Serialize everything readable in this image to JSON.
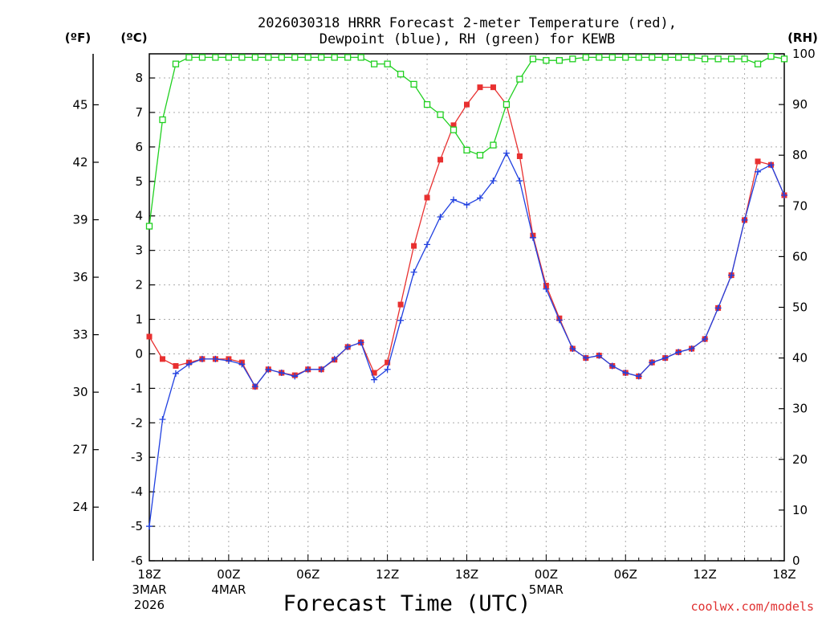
{
  "chart_data": {
    "type": "line",
    "title_line1": "2026030318 HRRR Forecast 2-meter Temperature (red),",
    "title_line2": "Dewpoint (blue), RH (green) for KEWB",
    "xlabel": "Forecast Time (UTC)",
    "credit": "coolwx.com/models",
    "units": {
      "f": "(ºF)",
      "c": "(ºC)",
      "rh": "(RH)"
    },
    "x_range_hours": [
      0,
      48
    ],
    "y_c_range": [
      -6,
      8.7
    ],
    "y_rh_range": [
      0,
      100
    ],
    "c_ticks": [
      "-6",
      "-5",
      "-4",
      "-3",
      "-2",
      "-1",
      "0",
      "1",
      "2",
      "3",
      "4",
      "5",
      "6",
      "7",
      "8"
    ],
    "f_ticks": [
      "24",
      "27",
      "30",
      "33",
      "36",
      "39",
      "42",
      "45"
    ],
    "rh_ticks": [
      "0",
      "10",
      "20",
      "30",
      "40",
      "50",
      "60",
      "70",
      "80",
      "90",
      "100"
    ],
    "x_ticks": [
      {
        "hour": 0,
        "label": "18Z"
      },
      {
        "hour": 6,
        "label": "00Z"
      },
      {
        "hour": 12,
        "label": "06Z"
      },
      {
        "hour": 18,
        "label": "12Z"
      },
      {
        "hour": 24,
        "label": "18Z"
      },
      {
        "hour": 30,
        "label": "00Z"
      },
      {
        "hour": 36,
        "label": "06Z"
      },
      {
        "hour": 42,
        "label": "12Z"
      },
      {
        "hour": 48,
        "label": "18Z"
      }
    ],
    "date_labels": [
      {
        "hour": 0,
        "line1": "3MAR",
        "line2": "2026"
      },
      {
        "hour": 6,
        "line1": "4MAR",
        "line2": ""
      },
      {
        "hour": 30,
        "line1": "5MAR",
        "line2": ""
      }
    ],
    "series": [
      {
        "name": "Temperature",
        "color": "#e83030",
        "marker": "filled-square",
        "values": [
          0.5,
          -0.15,
          -0.35,
          -0.25,
          -0.15,
          -0.15,
          -0.15,
          -0.25,
          -0.95,
          -0.45,
          -0.55,
          -0.62,
          -0.45,
          -0.45,
          -0.17,
          0.2,
          0.33,
          -0.55,
          -0.25,
          1.43,
          3.13,
          4.53,
          5.63,
          6.63,
          7.23,
          7.73,
          7.73,
          7.23,
          5.73,
          3.43,
          1.98,
          1.03,
          0.15,
          -0.12,
          -0.05,
          -0.35,
          -0.55,
          -0.65,
          -0.25,
          -0.12,
          0.05,
          0.15,
          0.43,
          1.33,
          2.28,
          3.88,
          5.58,
          5.48,
          4.6
        ]
      },
      {
        "name": "Dewpoint",
        "color": "#2040e0",
        "marker": "plus",
        "values": [
          -5.0,
          -1.9,
          -0.57,
          -0.3,
          -0.15,
          -0.15,
          -0.2,
          -0.3,
          -0.95,
          -0.45,
          -0.55,
          -0.65,
          -0.45,
          -0.45,
          -0.15,
          0.2,
          0.33,
          -0.75,
          -0.45,
          0.97,
          2.37,
          3.17,
          3.97,
          4.47,
          4.32,
          4.52,
          5.02,
          5.82,
          5.02,
          3.37,
          1.88,
          0.98,
          0.15,
          -0.12,
          -0.05,
          -0.35,
          -0.55,
          -0.65,
          -0.25,
          -0.12,
          0.05,
          0.15,
          0.43,
          1.33,
          2.28,
          3.88,
          5.28,
          5.48,
          4.6
        ]
      },
      {
        "name": "RH",
        "color": "#20d020",
        "marker": "open-square",
        "axis": "rh",
        "values": [
          66,
          87,
          98,
          99.3,
          99.3,
          99.3,
          99.3,
          99.3,
          99.3,
          99.3,
          99.3,
          99.3,
          99.3,
          99.3,
          99.3,
          99.3,
          99.3,
          98,
          98,
          96,
          94,
          90,
          88,
          85,
          81,
          80,
          82,
          90,
          95,
          99,
          98.7,
          98.7,
          99,
          99.3,
          99.3,
          99.3,
          99.3,
          99.3,
          99.3,
          99.3,
          99.3,
          99.3,
          99,
          99,
          99,
          99,
          98,
          99.5,
          99
        ]
      }
    ]
  }
}
